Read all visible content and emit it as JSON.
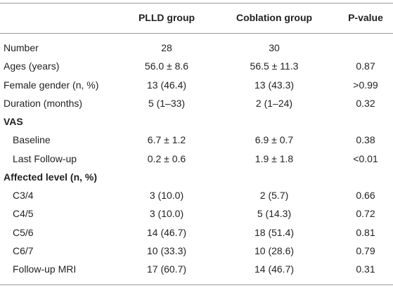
{
  "table": {
    "header": [
      "PLLD group",
      "Coblation group",
      "P-value"
    ],
    "rows": [
      {
        "label": "Number",
        "cells": [
          "28",
          "30"
        ]
      },
      {
        "label": "Ages (years)",
        "cells": [
          "56.0 ± 8.6",
          "56.5 ± 11.3",
          "0.87"
        ]
      },
      {
        "label": "Female gender (n, %)",
        "cells": [
          "13 (46.4)",
          "13 (43.3)",
          ">0.99"
        ]
      },
      {
        "label": "Duration (months)",
        "cells": [
          "5 (1–33)",
          "2 (1–24)",
          "0.32"
        ]
      },
      {
        "label": "VAS",
        "section": true
      },
      {
        "label": "Baseline",
        "indent": true,
        "cells": [
          "6.7 ± 1.2",
          "6.9 ± 0.7",
          "0.38"
        ]
      },
      {
        "label": "Last Follow-up",
        "indent": true,
        "cells": [
          "0.2 ± 0.6",
          "1.9 ± 1.8",
          "<0.01"
        ]
      },
      {
        "label": "Affected level (n, %)",
        "section": true
      },
      {
        "label": "C3/4",
        "indent": true,
        "cells": [
          "3 (10.0)",
          "2 (5.7)",
          "0.66"
        ]
      },
      {
        "label": "C4/5",
        "indent": true,
        "cells": [
          "3 (10.0)",
          "5 (14.3)",
          "0.72"
        ]
      },
      {
        "label": "C5/6",
        "indent": true,
        "cells": [
          "14 (46.7)",
          "18 (51.4)",
          "0.81"
        ]
      },
      {
        "label": "C6/7",
        "indent": true,
        "cells": [
          "10 (33.3)",
          "10 (28.6)",
          "0.79"
        ]
      },
      {
        "label": "Follow-up MRI",
        "indent": true,
        "cells": [
          "17 (60.7)",
          "14 (46.7)",
          "0.31"
        ]
      }
    ]
  }
}
